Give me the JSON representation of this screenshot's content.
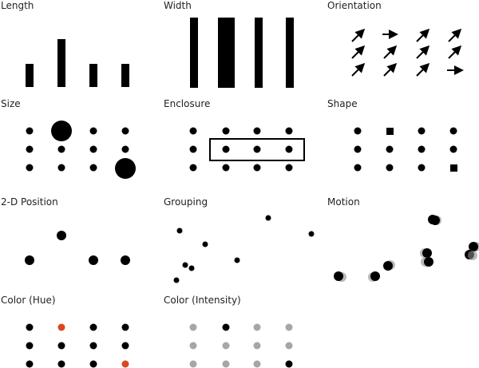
{
  "panels": [
    {
      "id": "length",
      "title": "Length"
    },
    {
      "id": "width",
      "title": "Width"
    },
    {
      "id": "orientation",
      "title": "Orientation"
    },
    {
      "id": "size",
      "title": "Size"
    },
    {
      "id": "enclosure",
      "title": "Enclosure"
    },
    {
      "id": "shape",
      "title": "Shape"
    },
    {
      "id": "position-2d",
      "title": "2-D Position"
    },
    {
      "id": "grouping",
      "title": "Grouping"
    },
    {
      "id": "motion",
      "title": "Motion"
    },
    {
      "id": "color-hue",
      "title": "Color (Hue)"
    },
    {
      "id": "color-intensity",
      "title": "Color (Intensity)"
    }
  ],
  "colors": {
    "mark": "#000000",
    "hue_accent": "#d9471f",
    "intensity_light": "#a6a6a6",
    "motion_trail": "#8a8a8a"
  }
}
